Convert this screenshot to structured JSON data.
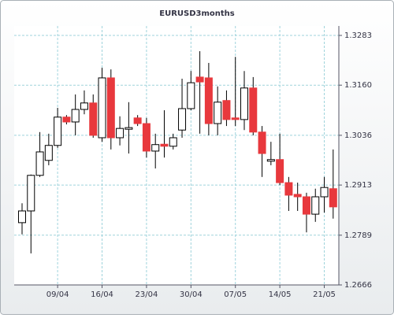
{
  "chart_data": {
    "type": "candlestick",
    "title": "EURUSD3months",
    "categories": [
      null,
      null,
      null,
      null,
      "09/04",
      null,
      null,
      null,
      null,
      "16/04",
      null,
      null,
      null,
      null,
      "23/04",
      null,
      null,
      null,
      null,
      "30/04",
      null,
      null,
      null,
      null,
      "07/05",
      null,
      null,
      null,
      null,
      "14/05",
      null,
      null,
      null,
      null,
      "21/05",
      null
    ],
    "open": [
      1.282,
      1.2849,
      1.2937,
      1.2974,
      1.3011,
      1.3081,
      1.3069,
      1.31,
      1.3116,
      1.303,
      1.3178,
      1.303,
      1.3051,
      1.3079,
      1.3065,
      1.2997,
      1.3014,
      1.3009,
      1.3049,
      1.3102,
      1.318,
      1.3178,
      1.3065,
      1.3122,
      1.3079,
      1.3075,
      1.3153,
      1.3044,
      1.2972,
      1.2976,
      1.2919,
      1.289,
      1.2884,
      1.2841,
      1.2884,
      1.2904
    ],
    "high": [
      1.2868,
      1.2939,
      1.3044,
      1.304,
      1.3104,
      1.3086,
      1.3137,
      1.3147,
      1.3137,
      1.3203,
      1.3199,
      1.3083,
      1.3118,
      1.3086,
      1.3079,
      1.304,
      1.3098,
      1.304,
      1.3176,
      1.3195,
      1.3244,
      1.3215,
      1.3157,
      1.3147,
      1.323,
      1.3195,
      1.318,
      1.3059,
      1.302,
      1.304,
      1.2933,
      1.2919,
      1.2894,
      1.2904,
      1.2933,
      1.3001
    ],
    "low": [
      1.2791,
      1.2744,
      1.2933,
      1.2962,
      1.3005,
      1.3063,
      1.3036,
      1.3088,
      1.303,
      1.302,
      1.3001,
      1.3011,
      1.2991,
      1.3059,
      1.2981,
      1.2954,
      1.2981,
      1.3001,
      1.303,
      1.3098,
      1.304,
      1.3036,
      1.3036,
      1.3059,
      1.3059,
      1.3049,
      1.3036,
      1.2933,
      1.2962,
      1.2913,
      1.2849,
      1.2849,
      1.2796,
      1.2822,
      1.2845,
      1.283
    ],
    "close": [
      1.2849,
      1.2937,
      1.2995,
      1.3011,
      1.3081,
      1.3069,
      1.31,
      1.3116,
      1.3036,
      1.3178,
      1.303,
      1.3053,
      1.3055,
      1.3065,
      1.2997,
      1.3013,
      1.3009,
      1.303,
      1.3102,
      1.3166,
      1.3168,
      1.3065,
      1.3118,
      1.3075,
      1.3075,
      1.3153,
      1.3044,
      1.2991,
      1.2976,
      1.2919,
      1.2888,
      1.2884,
      1.2841,
      1.2884,
      1.2907,
      1.2859
    ],
    "up_color": "#ffffff",
    "down_color": "#e8383d",
    "ylim": [
      1.2666,
      1.3283
    ],
    "yticks": [
      1.2666,
      1.2789,
      1.2913,
      1.3036,
      {
        "value": 1.316,
        "label": "1.3160"
      },
      1.3283
    ],
    "grid": true
  }
}
